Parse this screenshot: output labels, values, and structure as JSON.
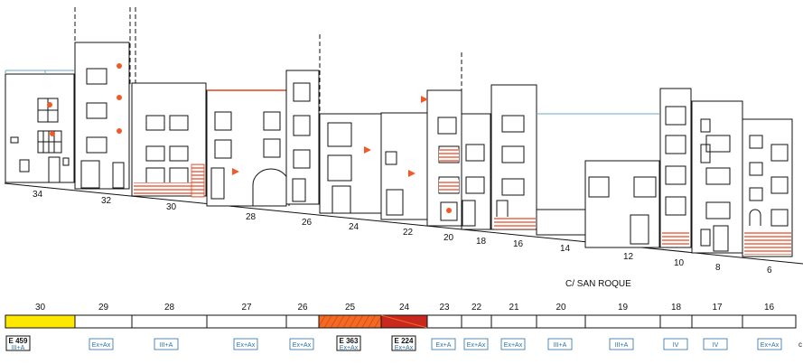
{
  "street_label": "C/ SAN ROQUE",
  "colors": {
    "line": "#111111",
    "accent_orange": "#f05a28",
    "hatch_red": "#e8401c",
    "cyan_line": "#6aa9c8",
    "yellow_fill": "#ffe800",
    "orange_fill": "#f26b22",
    "darkred_fill": "#c8281e",
    "tag_text": "#2a6fa8"
  },
  "house_numbers": [
    "34",
    "32",
    "30",
    "28",
    "26",
    "24",
    "22",
    "20",
    "18",
    "16",
    "14",
    "12",
    "10",
    "8",
    "6"
  ],
  "strip": [
    {
      "label": "30",
      "fill": "yellow"
    },
    {
      "label": "29",
      "fill": "none"
    },
    {
      "label": "28",
      "fill": "none"
    },
    {
      "label": "27",
      "fill": "none"
    },
    {
      "label": "26",
      "fill": "none"
    },
    {
      "label": "25",
      "fill": "orange"
    },
    {
      "label": "24",
      "fill": "darkred"
    },
    {
      "label": "23",
      "fill": "none"
    },
    {
      "label": "22",
      "fill": "none"
    },
    {
      "label": "21",
      "fill": "none"
    },
    {
      "label": "20",
      "fill": "none"
    },
    {
      "label": "19",
      "fill": "none"
    },
    {
      "label": "18",
      "fill": "none"
    },
    {
      "label": "17",
      "fill": "none"
    },
    {
      "label": "16",
      "fill": "none"
    }
  ],
  "tags": [
    {
      "code": "E 459",
      "cat": "III+A"
    },
    {
      "code": "",
      "cat": "Ex+Ax"
    },
    {
      "code": "",
      "cat": "III+A"
    },
    {
      "code": "",
      "cat": "Ex+Ax"
    },
    {
      "code": "",
      "cat": "Ex+Ax"
    },
    {
      "code": "E 363",
      "cat": "Ex+Ax"
    },
    {
      "code": "E 224",
      "cat": "Ex+Ax"
    },
    {
      "code": "",
      "cat": "Ex+A"
    },
    {
      "code": "",
      "cat": "Ex+Ax"
    },
    {
      "code": "",
      "cat": "Ex+Ax"
    },
    {
      "code": "",
      "cat": "III+A"
    },
    {
      "code": "",
      "cat": "III+A"
    },
    {
      "code": "",
      "cat": "IV"
    },
    {
      "code": "",
      "cat": "IV"
    },
    {
      "code": "",
      "cat": "Ex+Ax"
    }
  ]
}
